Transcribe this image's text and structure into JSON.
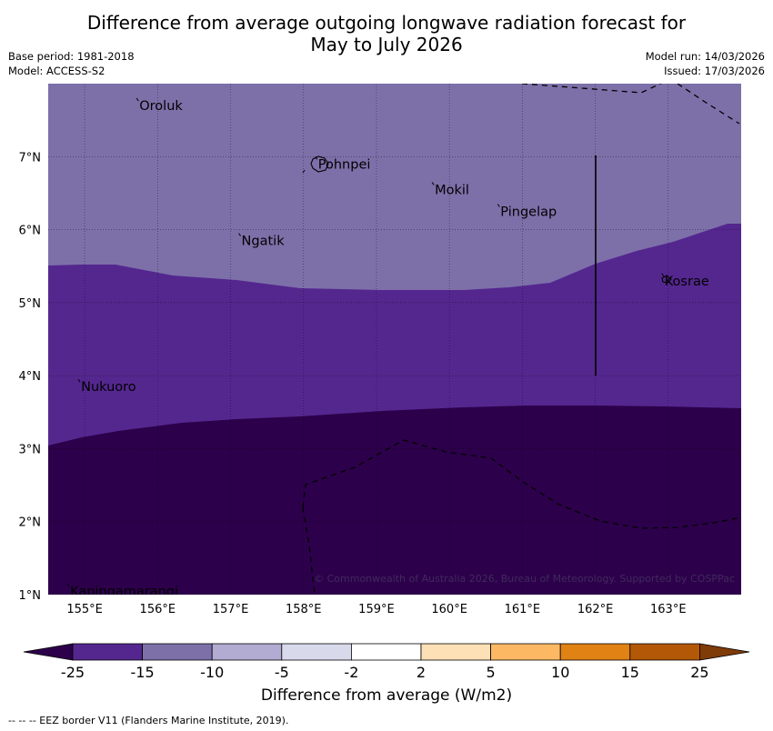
{
  "title": {
    "line1": "Difference from average outgoing longwave radiation forecast for",
    "line2": "May to July 2026"
  },
  "meta": {
    "base_period": "Base period: 1981-2018",
    "model": "Model: ACCESS-S2",
    "model_run": "Model run: 14/03/2026",
    "issued": "Issued: 17/03/2026"
  },
  "map": {
    "lon_range": [
      154.5,
      164
    ],
    "lat_range": [
      1,
      8
    ],
    "lon_ticks": [
      "155°E",
      "156°E",
      "157°E",
      "158°E",
      "159°E",
      "160°E",
      "161°E",
      "162°E",
      "163°E"
    ],
    "lat_ticks": [
      "1°N",
      "2°N",
      "3°N",
      "4°N",
      "5°N",
      "6°N",
      "7°N"
    ],
    "places": [
      {
        "name": "Oroluk",
        "lon": 155.75,
        "lat": 7.7
      },
      {
        "name": "Pohnpei",
        "lon": 158.2,
        "lat": 6.9
      },
      {
        "name": "Mokil",
        "lon": 159.8,
        "lat": 6.55
      },
      {
        "name": "Pingelap",
        "lon": 160.7,
        "lat": 6.25
      },
      {
        "name": "Ngatik",
        "lon": 157.15,
        "lat": 5.85
      },
      {
        "name": "Kosrae",
        "lon": 162.95,
        "lat": 5.3
      },
      {
        "name": "Nukuoro",
        "lon": 154.95,
        "lat": 3.85
      },
      {
        "name": "Kapingamarangi",
        "lon": 154.8,
        "lat": 1.05
      }
    ],
    "credit": "© Commonwealth of Australia 2026, Bureau of Meteorology. Supported by COSPPac",
    "colors": {
      "band_-10_-15": "#7d70a9",
      "band_-15_-25": "#54278f",
      "band_below_-25": "#2d004b"
    }
  },
  "colorbar": {
    "ticks": [
      "-25",
      "-15",
      "-10",
      "-5",
      "-2",
      "2",
      "5",
      "10",
      "15",
      "25"
    ],
    "colors": [
      "#2d004b",
      "#54278f",
      "#7d70a9",
      "#b2abd2",
      "#d8daeb",
      "#ffffff",
      "#fee0b6",
      "#fdb863",
      "#e08214",
      "#b35806",
      "#7f3b08"
    ],
    "label": "Difference from average (W/m2)"
  },
  "footnote": "--  --  -- EEZ border V11 (Flanders Marine Institute, 2019)."
}
